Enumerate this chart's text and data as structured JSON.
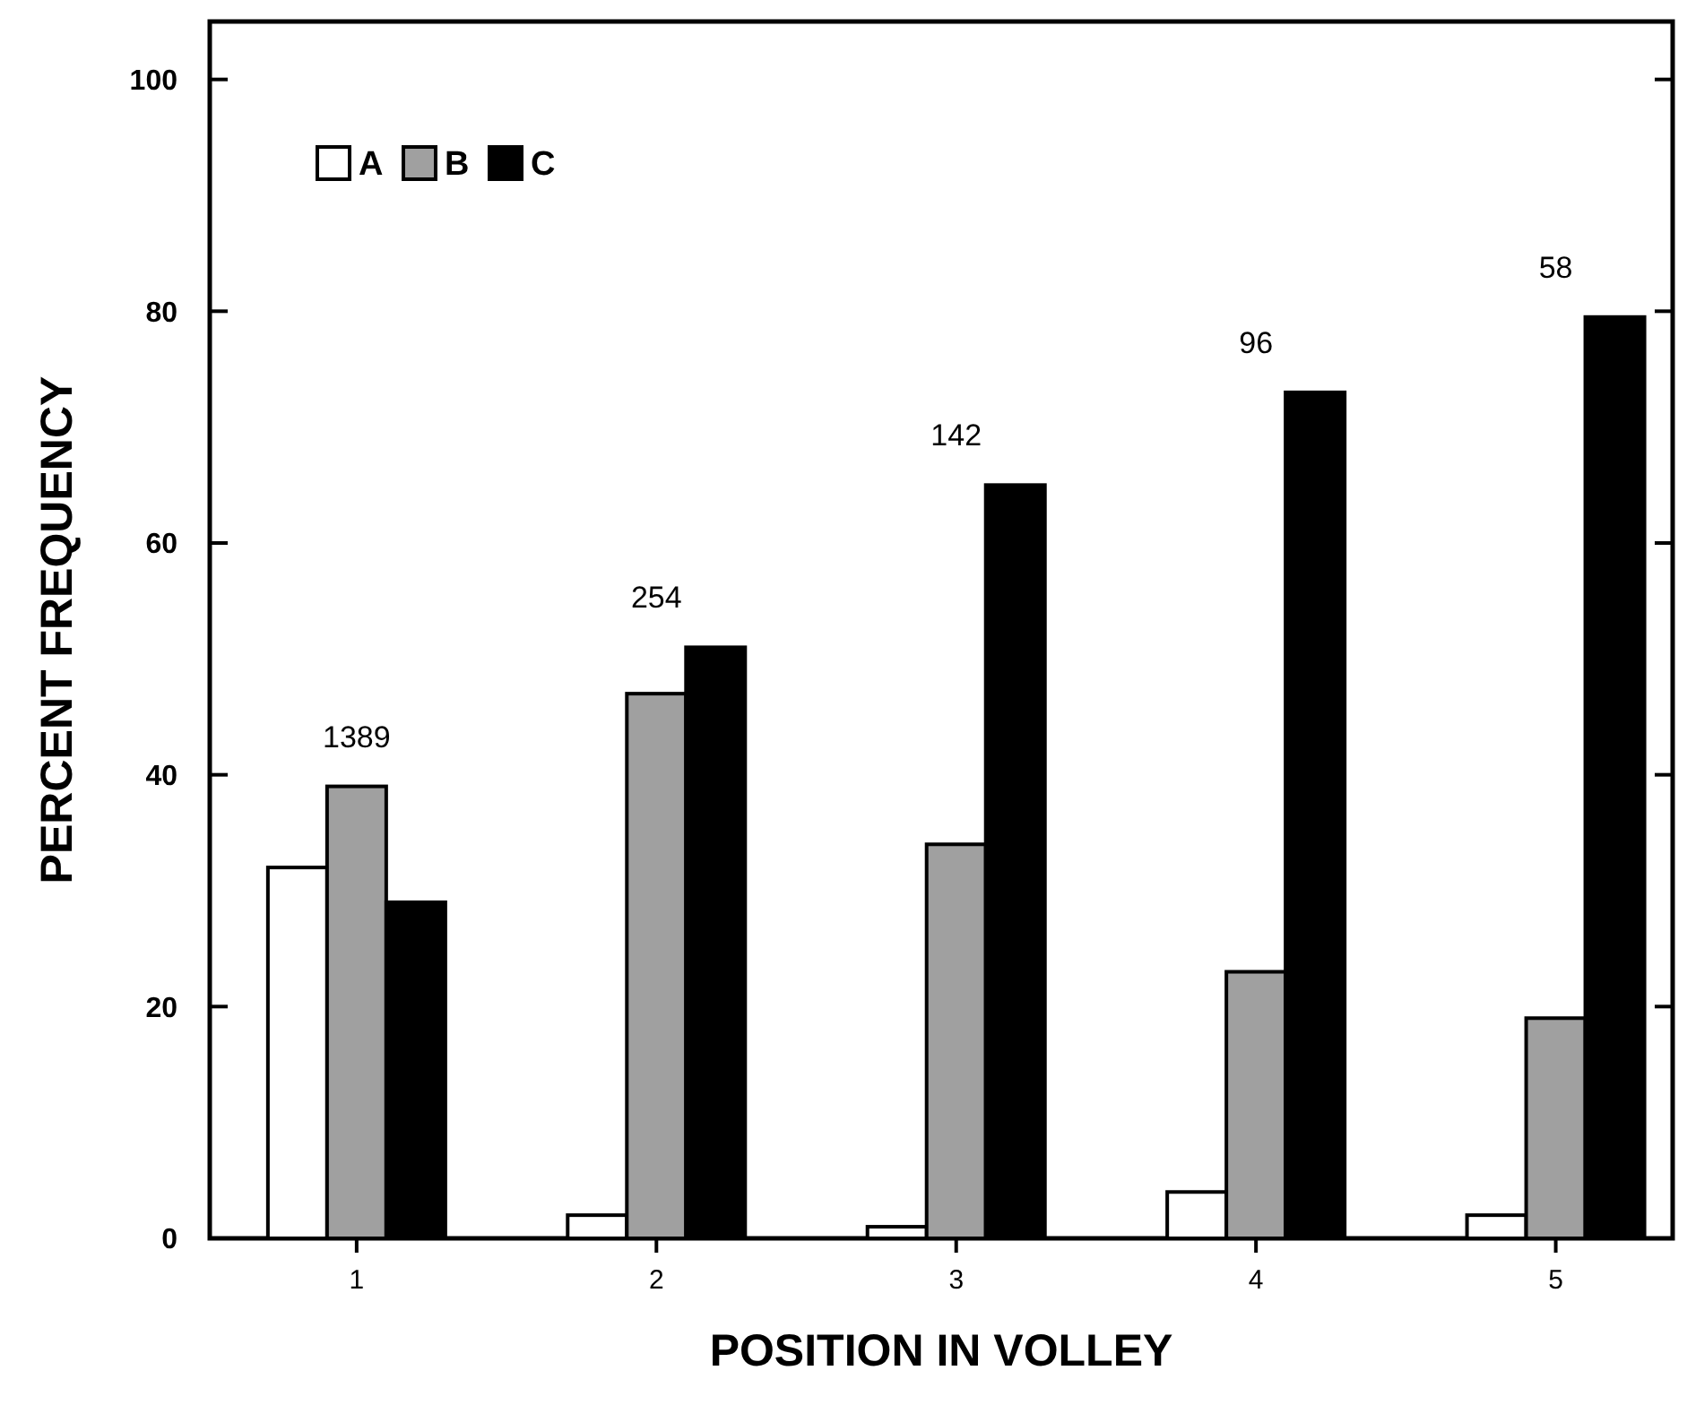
{
  "chart_data": {
    "type": "bar",
    "xlabel": "POSITION IN VOLLEY",
    "ylabel": "PERCENT FREQUENCY",
    "categories": [
      "1",
      "2",
      "3",
      "4",
      "5"
    ],
    "series": [
      {
        "name": "A",
        "color": "#ffffff",
        "values": [
          32,
          2,
          1,
          4,
          2
        ]
      },
      {
        "name": "B",
        "color": "#a0a0a0",
        "values": [
          39,
          47,
          34,
          23,
          19
        ]
      },
      {
        "name": "C",
        "color": "#000000",
        "values": [
          29,
          51,
          65,
          73,
          79.5
        ]
      }
    ],
    "ylim": [
      0,
      105
    ],
    "yticks": [
      0,
      20,
      40,
      60,
      80,
      100
    ],
    "grid": false,
    "legend": "top left",
    "annotations": [
      "1389",
      "254",
      "142",
      "96",
      "58"
    ]
  }
}
